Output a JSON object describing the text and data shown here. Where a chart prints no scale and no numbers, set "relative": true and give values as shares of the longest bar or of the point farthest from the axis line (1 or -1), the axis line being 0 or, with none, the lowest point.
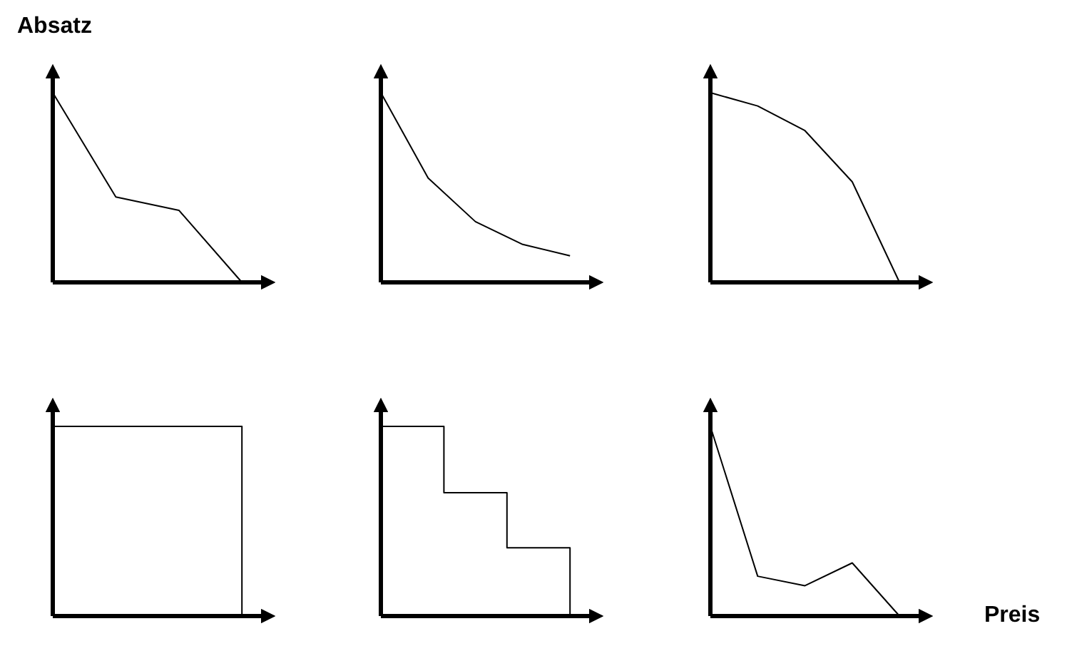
{
  "chart_data": [
    {
      "type": "line",
      "relative": true,
      "ylabel": "Absatz",
      "categories": [
        null,
        null,
        null,
        null
      ],
      "values": [
        1,
        0.45,
        0.38,
        0
      ],
      "color": "#000000"
    },
    {
      "type": "line",
      "relative": true,
      "categories": [
        null,
        null,
        null,
        null,
        null
      ],
      "values": [
        1,
        0.55,
        0.32,
        0.2,
        0.14
      ],
      "color": "#000000"
    },
    {
      "type": "line",
      "relative": true,
      "categories": [
        null,
        null,
        null,
        null,
        null
      ],
      "values": [
        1,
        0.93,
        0.8,
        0.53,
        0
      ],
      "color": "#000000"
    },
    {
      "type": "step",
      "relative": true,
      "categories": [
        null,
        null,
        null
      ],
      "values": [
        1,
        1,
        0
      ],
      "color": "#000000"
    },
    {
      "type": "step",
      "relative": true,
      "categories": [
        null,
        null,
        null,
        null
      ],
      "values": [
        1,
        0.65,
        0.36,
        0
      ],
      "color": "#000000"
    },
    {
      "type": "line",
      "relative": true,
      "xlabel": "Preis",
      "categories": [
        null,
        null,
        null,
        null,
        null
      ],
      "values": [
        1,
        0.21,
        0.16,
        0.28,
        0
      ],
      "color": "#000000"
    }
  ]
}
